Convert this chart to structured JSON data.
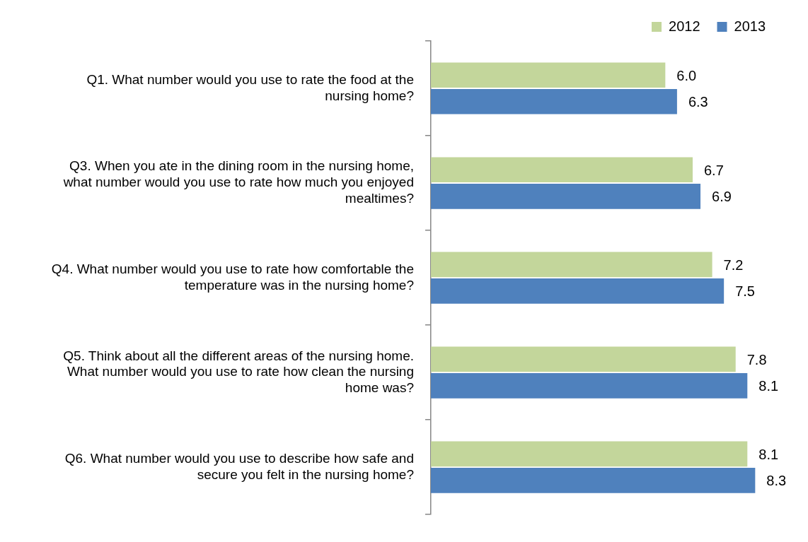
{
  "chart_data": {
    "type": "bar",
    "orientation": "horizontal",
    "categories": [
      "Q1. What number would you use to rate the food at the nursing home?",
      "Q3. When you ate in the dining room in the nursing home, what number would you use to rate how much you enjoyed mealtimes?",
      "Q4. What number would you use to rate how comfortable the temperature was in the nursing home?",
      "Q5. Think about all the different areas of the nursing home. What number would you use to rate how clean the nursing home was?",
      "Q6. What number would you use to describe how safe and secure you felt in the nursing home?"
    ],
    "series": [
      {
        "name": "2012",
        "color": "#c3d69b",
        "values": [
          6.0,
          6.7,
          7.2,
          7.8,
          8.1
        ],
        "value_labels": [
          "6.0",
          "6.7",
          "7.2",
          "7.8",
          "8.1"
        ]
      },
      {
        "name": "2013",
        "color": "#4f81bd",
        "values": [
          6.3,
          6.9,
          7.5,
          8.1,
          8.3
        ],
        "value_labels": [
          "6.3",
          "6.9",
          "7.5",
          "8.1",
          "8.3"
        ]
      }
    ],
    "legend": "top right"
  }
}
